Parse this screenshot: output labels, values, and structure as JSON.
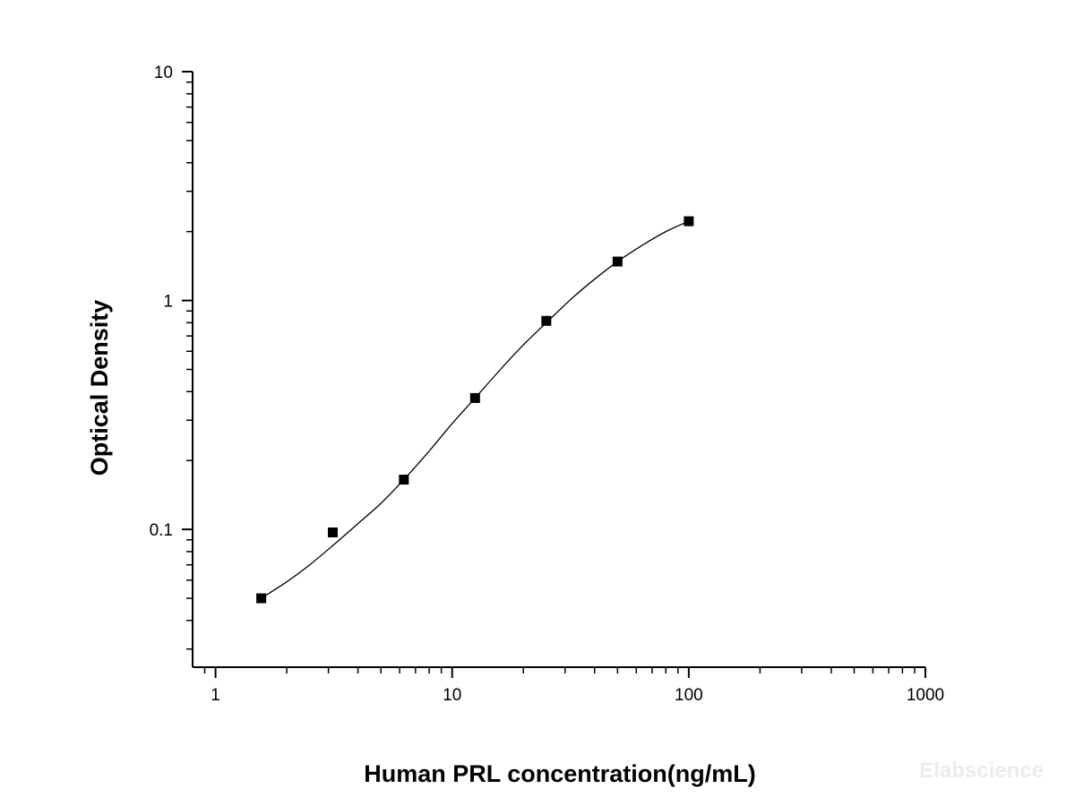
{
  "chart_data": {
    "type": "scatter",
    "title": "",
    "xlabel": "Human PRL concentration(ng/mL)",
    "ylabel": "Optical Density",
    "x_scale": "log",
    "y_scale": "log",
    "xlim": [
      0.8,
      1000
    ],
    "ylim": [
      0.025,
      10
    ],
    "x_ticks": [
      1,
      10,
      100,
      1000
    ],
    "x_tick_labels": [
      "1",
      "10",
      "100",
      "1000"
    ],
    "y_ticks": [
      0.1,
      1,
      10
    ],
    "y_tick_labels": [
      "0.1",
      "1",
      "10"
    ],
    "grid": false,
    "legend": "none",
    "series": [
      {
        "marker": "square",
        "color": "#000000",
        "x": [
          1.56,
          3.13,
          6.25,
          12.5,
          25,
          50,
          100
        ],
        "y": [
          0.05,
          0.097,
          0.165,
          0.375,
          0.815,
          1.48,
          2.22
        ]
      }
    ],
    "fit_curve": {
      "style": "smooth line",
      "color": "#000000",
      "x": [
        1.56,
        2,
        2.5,
        3.13,
        4,
        5,
        6.25,
        8,
        10,
        12.5,
        16,
        20,
        25,
        32,
        40,
        50,
        64,
        80,
        100
      ],
      "y": [
        0.05,
        0.059,
        0.07,
        0.085,
        0.106,
        0.13,
        0.165,
        0.22,
        0.29,
        0.375,
        0.5,
        0.64,
        0.8,
        1.02,
        1.24,
        1.48,
        1.75,
        2.0,
        2.22
      ]
    }
  },
  "watermark": "Elabscience"
}
